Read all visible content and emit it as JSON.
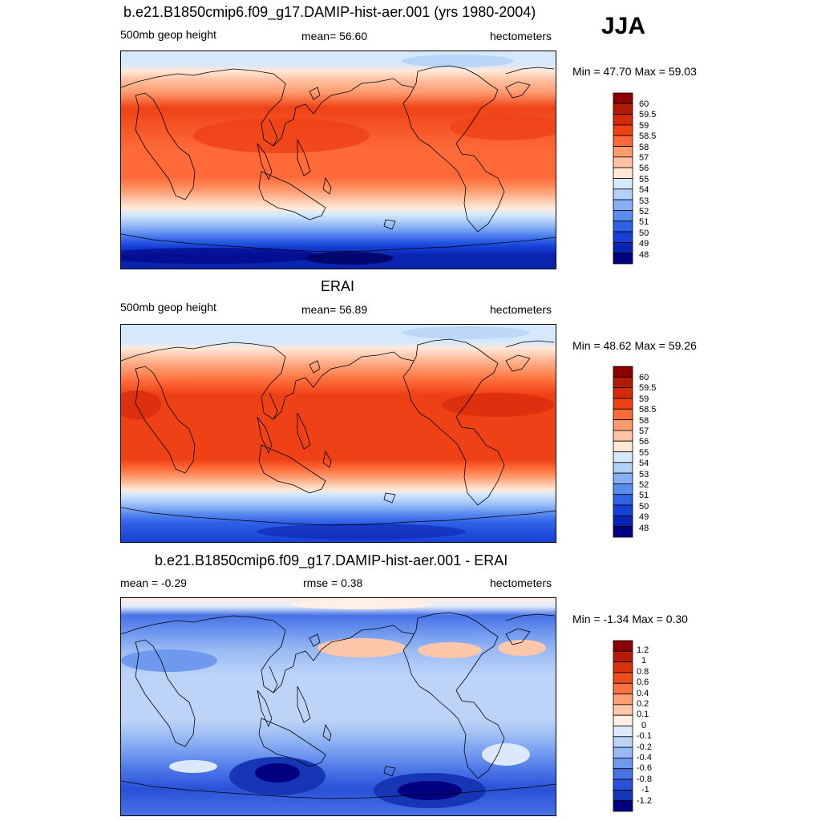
{
  "season": "JJA",
  "panels": [
    {
      "title": "b.e21.B1850cmip6.f09_g17.DAMIP-hist-aer.001 (yrs 1980-2004)",
      "left_label": "500mb geop height",
      "center_label": "mean=  56.60",
      "right_label": "hectometers",
      "minmax": "Min =  47.70 Max =  59.03",
      "colorbar_labels": [
        "60",
        "59.5",
        "59",
        "58.5",
        "58",
        "57",
        "56",
        "55",
        "54",
        "53",
        "52",
        "51",
        "50",
        "49",
        "48"
      ]
    },
    {
      "title": "ERAI",
      "left_label": "500mb geop height",
      "center_label": "mean=  56.89",
      "right_label": "hectometers",
      "minmax": "Min =  48.62 Max =  59.26",
      "colorbar_labels": [
        "60",
        "59.5",
        "59",
        "58.5",
        "58",
        "57",
        "56",
        "55",
        "54",
        "53",
        "52",
        "51",
        "50",
        "49",
        "48"
      ]
    },
    {
      "title": "b.e21.B1850cmip6.f09_g17.DAMIP-hist-aer.001 - ERAI",
      "left_label": "mean =  -0.29",
      "center_label": "rmse =   0.38",
      "right_label": "hectometers",
      "minmax": "Min =  -1.34 Max =   0.30",
      "colorbar_labels": [
        "1.2",
        "1",
        "0.8",
        "0.6",
        "0.4",
        "0.2",
        "0.1",
        "0",
        "-0.1",
        "-0.2",
        "-0.4",
        "-0.6",
        "-0.8",
        "-1",
        "-1.2"
      ]
    }
  ],
  "colors": {
    "abs_scale": [
      "#8b0000",
      "#b01a06",
      "#d42a0c",
      "#ee4216",
      "#ff6a38",
      "#ff9a6e",
      "#ffc2a4",
      "#ffe8d8",
      "#d6e8fb",
      "#b2d0f8",
      "#88aff5",
      "#5a8bef",
      "#2f62e6",
      "#1640d6",
      "#0a23b0",
      "#000080"
    ],
    "diff_scale": [
      "#8b0000",
      "#b81b05",
      "#d8320e",
      "#f04d1d",
      "#ff7343",
      "#ff9f77",
      "#ffc7aa",
      "#fff0e6",
      "#dce9fb",
      "#bdd4f8",
      "#98baf4",
      "#6f98ef",
      "#4872e6",
      "#2a50d7",
      "#1636b6",
      "#000080"
    ]
  }
}
